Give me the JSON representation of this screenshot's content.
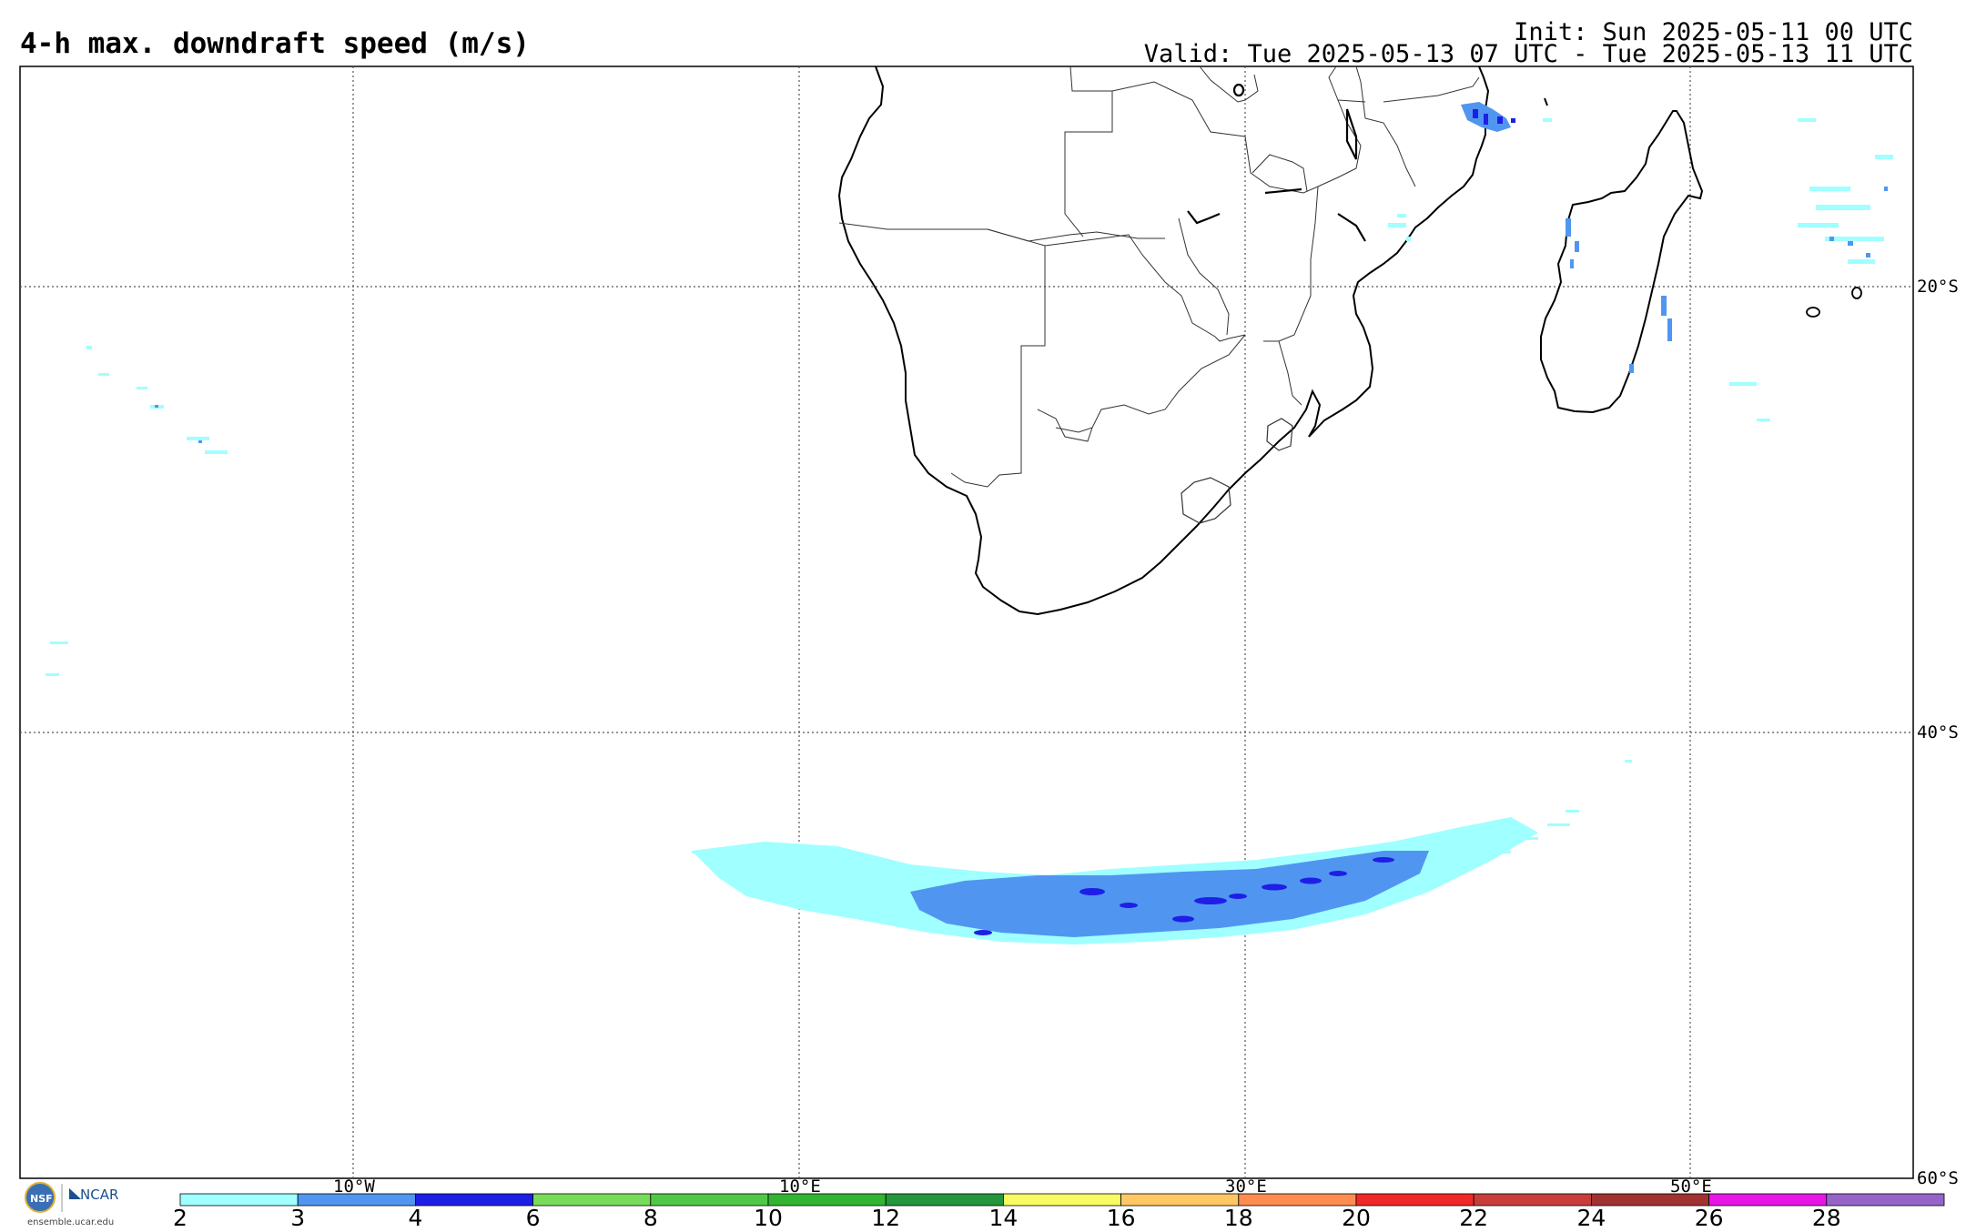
{
  "header": {
    "title": "4-h max. downdraft speed (m/s)",
    "init": "Init: Sun 2025-05-11 00 UTC",
    "valid": "Valid: Tue 2025-05-13 07 UTC - Tue 2025-05-13 11 UTC"
  },
  "map": {
    "lon_labels": [
      "10°W",
      "10°E",
      "30°E",
      "50°E"
    ],
    "lat_labels": [
      "20°S",
      "40°S",
      "60°S"
    ],
    "gridlines": "dotted"
  },
  "colorbar": {
    "ticks": [
      "2",
      "3",
      "4",
      "6",
      "8",
      "10",
      "12",
      "14",
      "16",
      "18",
      "20",
      "22",
      "24",
      "26",
      "28"
    ],
    "colors": [
      "#a0ffff",
      "#5096f0",
      "#1e1ee6",
      "#78dc5a",
      "#50c846",
      "#32b432",
      "#24963c",
      "#fafa64",
      "#ffc864",
      "#ff8c50",
      "#f02828",
      "#c83c3c",
      "#a03232",
      "#e614e6",
      "#9664c8"
    ]
  },
  "logo": {
    "nsf": "NSF",
    "ncar": "NCAR",
    "url": "ensemble.ucar.edu"
  }
}
